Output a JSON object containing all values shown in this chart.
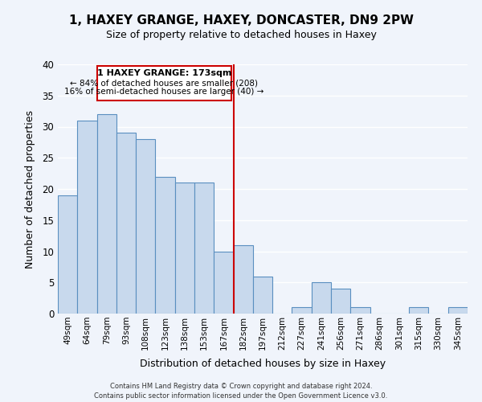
{
  "title": "1, HAXEY GRANGE, HAXEY, DONCASTER, DN9 2PW",
  "subtitle": "Size of property relative to detached houses in Haxey",
  "xlabel": "Distribution of detached houses by size in Haxey",
  "ylabel": "Number of detached properties",
  "bar_labels": [
    "49sqm",
    "64sqm",
    "79sqm",
    "93sqm",
    "108sqm",
    "123sqm",
    "138sqm",
    "153sqm",
    "167sqm",
    "182sqm",
    "197sqm",
    "212sqm",
    "227sqm",
    "241sqm",
    "256sqm",
    "271sqm",
    "286sqm",
    "301sqm",
    "315sqm",
    "330sqm",
    "345sqm"
  ],
  "bar_values": [
    19,
    31,
    32,
    29,
    28,
    22,
    21,
    21,
    10,
    11,
    6,
    0,
    1,
    5,
    4,
    1,
    0,
    0,
    1,
    0,
    1
  ],
  "bar_color": "#c8d9ed",
  "bar_edgecolor": "#5a8fc0",
  "background_color": "#f0f4fb",
  "grid_color": "#ffffff",
  "ylim": [
    0,
    40
  ],
  "yticks": [
    0,
    5,
    10,
    15,
    20,
    25,
    30,
    35,
    40
  ],
  "vline_x": 8.5,
  "vline_color": "#cc0000",
  "annotation_title": "1 HAXEY GRANGE: 173sqm",
  "annotation_line1": "← 84% of detached houses are smaller (208)",
  "annotation_line2": "16% of semi-detached houses are larger (40) →",
  "annotation_box_edgecolor": "#cc0000",
  "footer_line1": "Contains HM Land Registry data © Crown copyright and database right 2024.",
  "footer_line2": "Contains public sector information licensed under the Open Government Licence v3.0."
}
